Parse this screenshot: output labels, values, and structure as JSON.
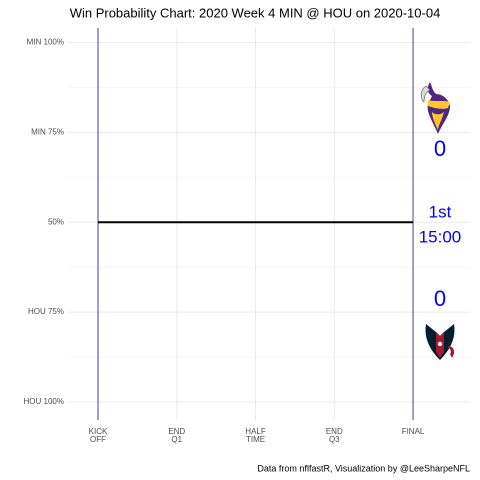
{
  "chart_data": {
    "type": "line",
    "title": "Win Probability Chart: 2020 Week 4 MIN @ HOU on 2020-10-04",
    "caption": "Data from nflfastR, Visualization by @LeeSharpeNFL",
    "x": [
      0,
      3600
    ],
    "series": [
      {
        "name": "MIN",
        "color": "#000000",
        "values": [
          50,
          50
        ]
      }
    ],
    "xlim": [
      -343,
      4251
    ],
    "xticks": [
      {
        "value": 0,
        "label": "KICK\nOFF"
      },
      {
        "value": 900,
        "label": "END\nQ1"
      },
      {
        "value": 1800,
        "label": "HALF\nTIME"
      },
      {
        "value": 2700,
        "label": "END\nQ3"
      },
      {
        "value": 3600,
        "label": "FINAL"
      }
    ],
    "ylim": [
      -5,
      104
    ],
    "yticks": [
      {
        "value": 0,
        "label": "HOU 100%"
      },
      {
        "value": 25,
        "label": "HOU 75%"
      },
      {
        "value": 50,
        "label": "50%"
      },
      {
        "value": 75,
        "label": "MIN 75%"
      },
      {
        "value": 100,
        "label": "MIN 100%"
      }
    ],
    "yminor": [
      12.5,
      37.5,
      62.5,
      87.5
    ],
    "grid": true,
    "boundary_color": "#1b1464",
    "annotation_color": "#0000ff",
    "annotations": {
      "away_score": "0",
      "quarter": "1st",
      "clock": "15:00",
      "home_score": "0"
    }
  }
}
